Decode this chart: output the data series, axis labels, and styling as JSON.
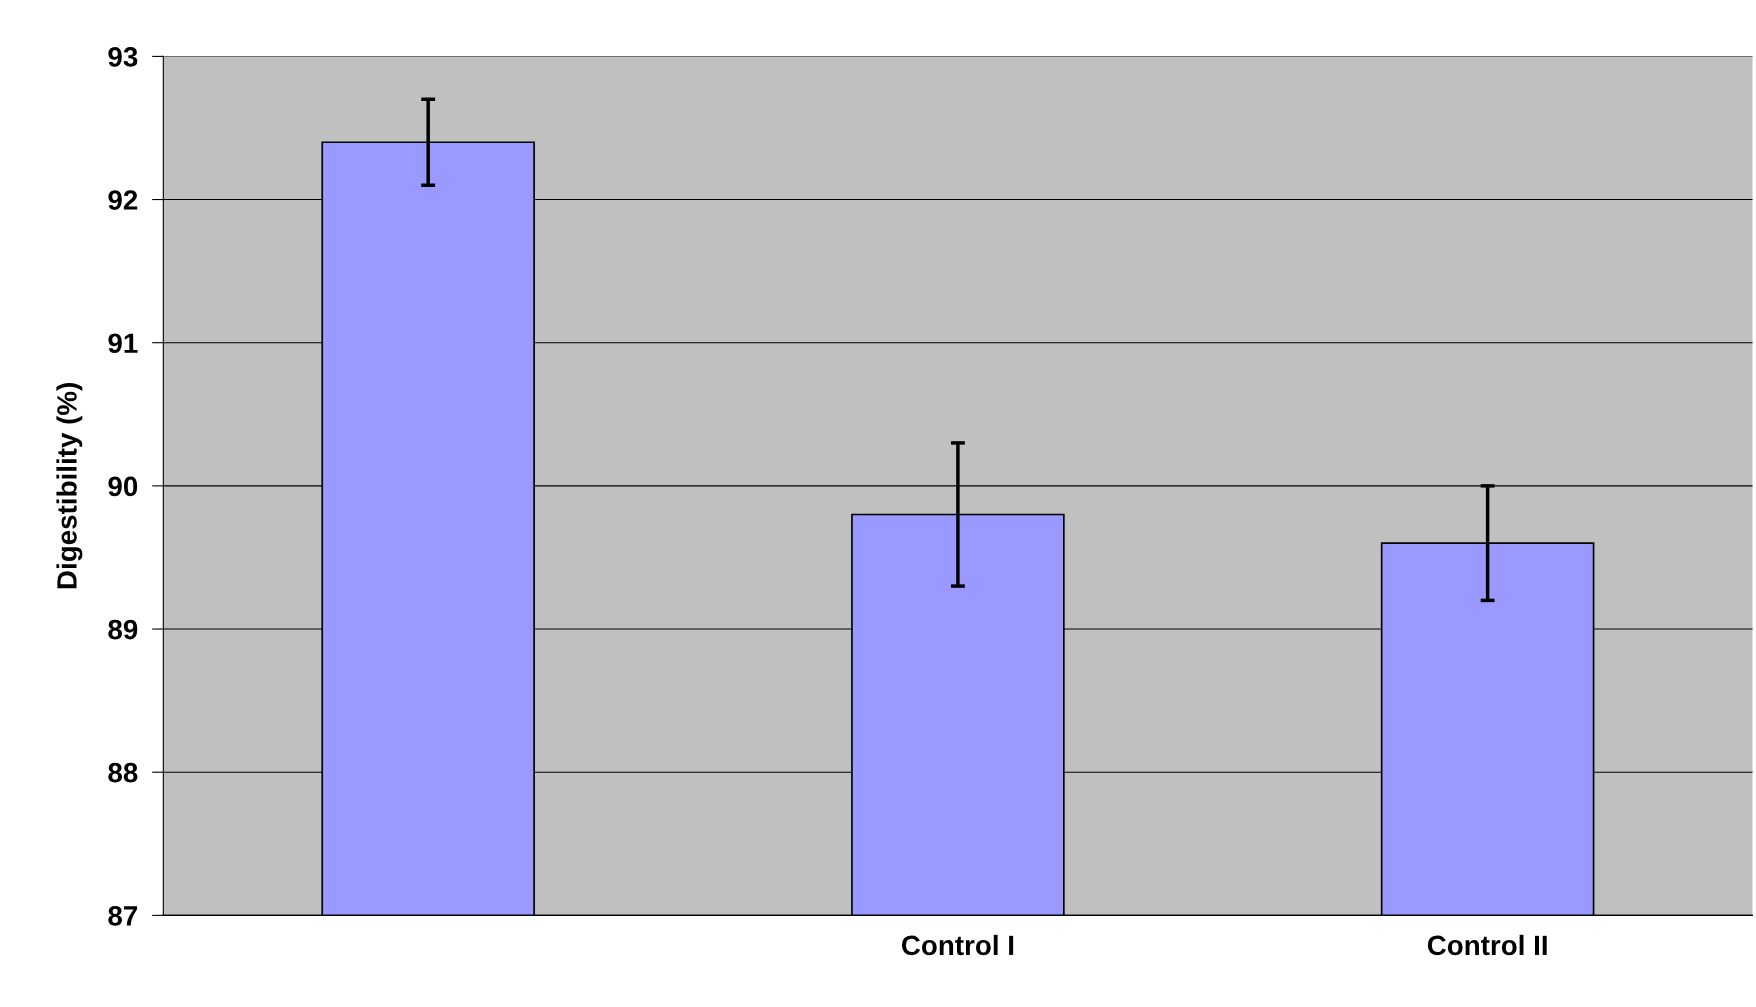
{
  "chart_data": {
    "type": "bar",
    "ylabel": "Digestibility (%)",
    "categories": [
      null,
      "Control I",
      "Control II"
    ],
    "values": [
      92.4,
      89.8,
      89.6
    ],
    "errors": [
      0.3,
      0.5,
      0.4
    ],
    "color": "#9999ff",
    "ylim": [
      87,
      93
    ],
    "yticks": [
      87,
      88,
      89,
      90,
      91,
      92,
      93
    ],
    "grid": "y"
  }
}
